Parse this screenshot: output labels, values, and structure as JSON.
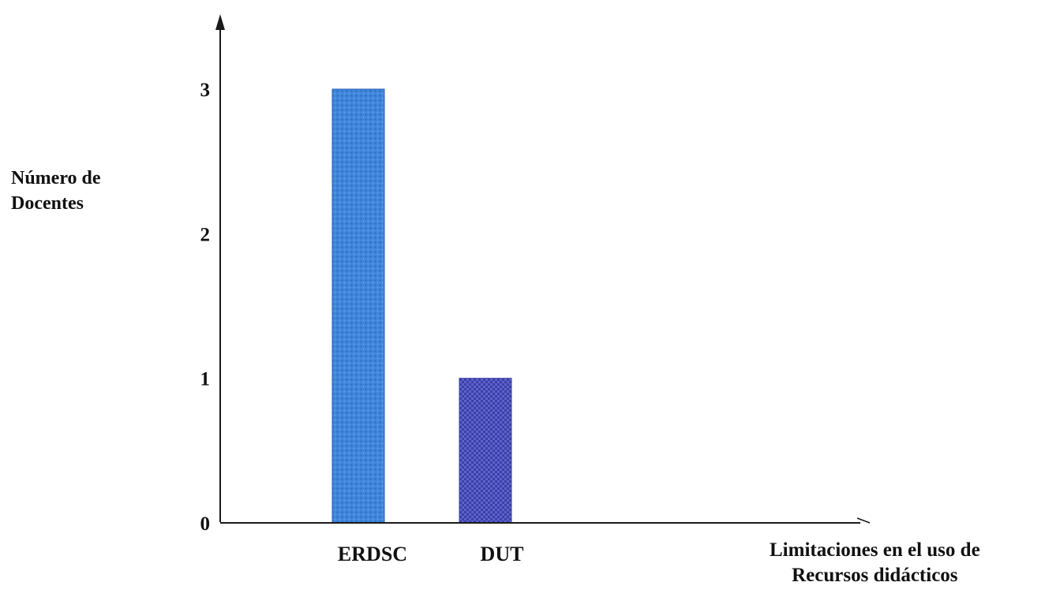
{
  "chart_data": {
    "type": "bar",
    "categories": [
      "ERDSC",
      "DUT"
    ],
    "values": [
      3,
      1
    ],
    "ylim": [
      0,
      3
    ],
    "yticks": [
      0,
      1,
      2,
      3
    ],
    "ylabel_lines": [
      "Número de",
      "Docentes"
    ],
    "xlabel_lines": [
      "Limitaciones en el uso de",
      "Recursos didácticos"
    ],
    "grid": false,
    "legend": "none",
    "colors": {
      "bar_erdsc": "#3f86dc",
      "bar_erdsc_dots": "#2a62b4",
      "bar_dut": "#5d63cc",
      "bar_dut_checks": "#3b3fa6",
      "axis": "#1a1a1a"
    }
  }
}
